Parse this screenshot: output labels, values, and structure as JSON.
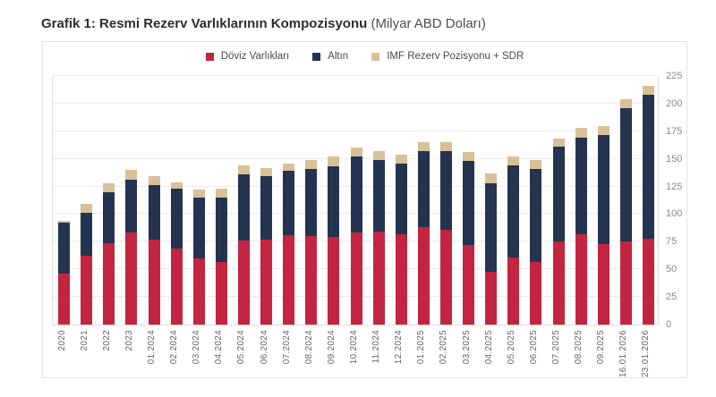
{
  "title": {
    "main": "Grafik 1: Resmi Rezerv Varlıklarının Kompozisyonu",
    "unit": "(Milyar ABD Doları)"
  },
  "colors": {
    "doviz_red": "#c3243f",
    "altin_navy": "#243350",
    "imf_tan": "#d8c098",
    "grid": "#ececec",
    "axis_border": "#e0e0e0",
    "panel_border": "#e4e4e4",
    "x_tick_text": "#666666",
    "y_tick_text": "#8a8a8a"
  },
  "chart_data": {
    "type": "bar",
    "stacked": true,
    "title": "Grafik 1: Resmi Rezerv Varlıklarının Kompozisyonu",
    "unit_label": "Milyar ABD Doları",
    "legend_position": "top",
    "grid": true,
    "y_axis": {
      "min": 0,
      "max": 225,
      "step": 25,
      "position": "right",
      "ticks": [
        0,
        25,
        50,
        75,
        100,
        125,
        150,
        175,
        200,
        225
      ]
    },
    "categories": [
      "2020",
      "2021",
      "2022",
      "2023",
      "01.2024",
      "02.2024",
      "03.2024",
      "04.2024",
      "05.2024",
      "06.2024",
      "07.2024",
      "08.2024",
      "09.2024",
      "10.2024",
      "11.2024",
      "12.2024",
      "01.2025",
      "02.2025",
      "03.2025",
      "04.2025",
      "05.2025",
      "06.2025",
      "07.2025",
      "08.2025",
      "09.2025",
      "16.01.2026",
      "23.01.2026"
    ],
    "series": [
      {
        "name": "Döviz Varlıkları",
        "color": "#c3243f",
        "values": [
          46,
          62,
          74,
          83,
          77,
          69,
          60,
          57,
          76,
          77,
          81,
          80,
          79,
          83,
          84,
          82,
          88,
          86,
          72,
          48,
          61,
          57,
          75,
          82,
          73,
          75,
          78
        ]
      },
      {
        "name": "Altın",
        "color": "#243350",
        "values": [
          46,
          39,
          46,
          48,
          49,
          54,
          55,
          58,
          60,
          57,
          58,
          61,
          64,
          69,
          65,
          64,
          69,
          71,
          76,
          80,
          83,
          84,
          86,
          87,
          99,
          121,
          130
        ]
      },
      {
        "name": "IMF Rezerv Pozisyonu + SDR",
        "color": "#d8c098",
        "values": [
          2,
          8,
          8,
          9,
          8,
          6,
          7,
          8,
          8,
          8,
          7,
          8,
          9,
          8,
          8,
          8,
          8,
          8,
          8,
          9,
          8,
          8,
          7,
          9,
          8,
          8,
          8
        ]
      }
    ],
    "totals": [
      94,
      109,
      128,
      140,
      134,
      129,
      122,
      123,
      144,
      142,
      146,
      149,
      152,
      160,
      157,
      154,
      165,
      165,
      156,
      137,
      152,
      149,
      168,
      178,
      180,
      204,
      216
    ]
  }
}
